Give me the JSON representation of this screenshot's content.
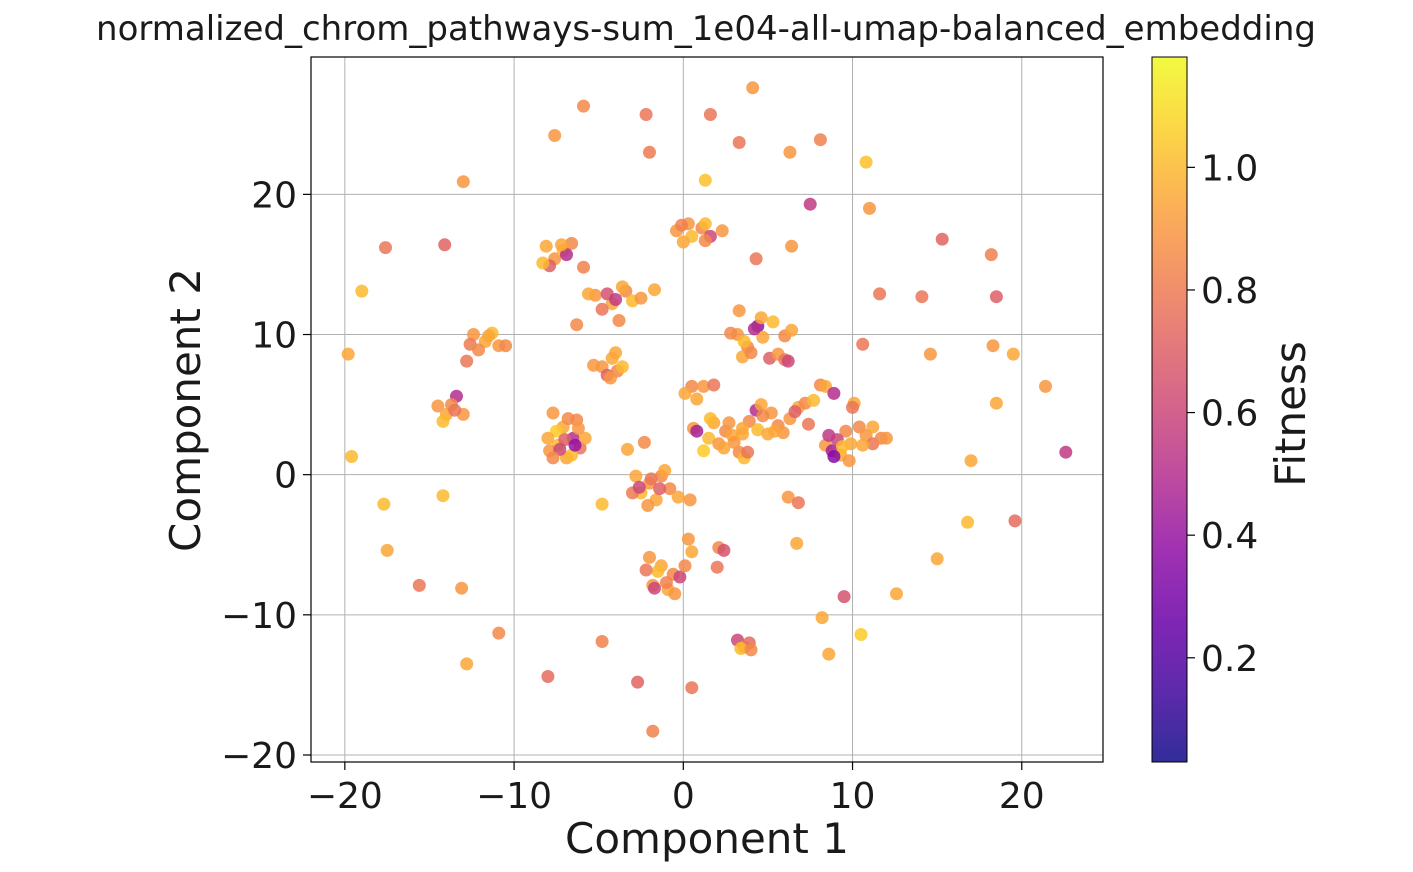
{
  "chart_data": {
    "type": "scatter",
    "title": "normalized_chrom_pathways-sum_1e04-all-umap-balanced_embedding",
    "xlabel": "Component 1",
    "ylabel": "Component 2",
    "xlim": [
      -22,
      24.8
    ],
    "ylim": [
      -20.5,
      29.8
    ],
    "xticks": [
      -20,
      -10,
      0,
      10,
      20
    ],
    "yticks": [
      -20,
      -10,
      0,
      10,
      20
    ],
    "xtick_labels": [
      "−20",
      "−10",
      "0",
      "10",
      "20"
    ],
    "ytick_labels": [
      "−20",
      "−10",
      "0",
      "10",
      "20"
    ],
    "grid": true,
    "colorbar": {
      "label": "Fitness",
      "colormap": "plasma",
      "range": [
        0.03,
        1.18
      ],
      "ticks": [
        0.2,
        0.4,
        0.6,
        0.8,
        1.0
      ],
      "tick_labels": [
        "0.2",
        "0.4",
        "0.6",
        "0.8",
        "1.0"
      ]
    },
    "points": [
      {
        "x": 4.1,
        "y": 27.6,
        "c": 0.9
      },
      {
        "x": -5.9,
        "y": 26.3,
        "c": 0.85
      },
      {
        "x": -2.2,
        "y": 25.7,
        "c": 0.78
      },
      {
        "x": 1.6,
        "y": 25.7,
        "c": 0.78
      },
      {
        "x": -7.6,
        "y": 24.2,
        "c": 0.9
      },
      {
        "x": 3.3,
        "y": 23.7,
        "c": 0.78
      },
      {
        "x": 8.1,
        "y": 23.9,
        "c": 0.82
      },
      {
        "x": -2.0,
        "y": 23.0,
        "c": 0.8
      },
      {
        "x": 6.3,
        "y": 23.0,
        "c": 0.9
      },
      {
        "x": 10.8,
        "y": 22.3,
        "c": 1.02
      },
      {
        "x": -13.0,
        "y": 20.9,
        "c": 0.9
      },
      {
        "x": 1.3,
        "y": 21.0,
        "c": 1.02
      },
      {
        "x": 7.5,
        "y": 19.3,
        "c": 0.55
      },
      {
        "x": 11.0,
        "y": 19.0,
        "c": 0.9
      },
      {
        "x": -17.6,
        "y": 16.2,
        "c": 0.78
      },
      {
        "x": -14.1,
        "y": 16.4,
        "c": 0.72
      },
      {
        "x": 15.3,
        "y": 16.8,
        "c": 0.72
      },
      {
        "x": 18.2,
        "y": 15.7,
        "c": 0.82
      },
      {
        "x": -19.0,
        "y": 13.1,
        "c": 1.0
      },
      {
        "x": 11.6,
        "y": 12.9,
        "c": 0.78
      },
      {
        "x": 14.1,
        "y": 12.7,
        "c": 0.78
      },
      {
        "x": 18.5,
        "y": 12.7,
        "c": 0.7
      },
      {
        "x": -1.7,
        "y": 13.2,
        "c": 0.95
      },
      {
        "x": -5.9,
        "y": 14.8,
        "c": 0.82
      },
      {
        "x": 4.3,
        "y": 15.4,
        "c": 0.78
      },
      {
        "x": 6.4,
        "y": 16.3,
        "c": 0.9
      },
      {
        "x": -19.8,
        "y": 8.6,
        "c": 0.95
      },
      {
        "x": 10.6,
        "y": 9.3,
        "c": 0.78
      },
      {
        "x": 14.6,
        "y": 8.6,
        "c": 0.9
      },
      {
        "x": 18.3,
        "y": 9.2,
        "c": 0.9
      },
      {
        "x": 19.5,
        "y": 8.6,
        "c": 0.95
      },
      {
        "x": 21.4,
        "y": 6.3,
        "c": 0.9
      },
      {
        "x": 18.5,
        "y": 5.1,
        "c": 0.95
      },
      {
        "x": 22.6,
        "y": 1.6,
        "c": 0.55
      },
      {
        "x": 17.0,
        "y": 1.0,
        "c": 0.95
      },
      {
        "x": -19.6,
        "y": 1.3,
        "c": 1.0
      },
      {
        "x": -17.7,
        "y": -2.1,
        "c": 1.0
      },
      {
        "x": -14.2,
        "y": -1.5,
        "c": 1.0
      },
      {
        "x": -17.5,
        "y": -5.4,
        "c": 0.95
      },
      {
        "x": -15.6,
        "y": -7.9,
        "c": 0.78
      },
      {
        "x": -13.1,
        "y": -8.1,
        "c": 0.9
      },
      {
        "x": -10.9,
        "y": -11.3,
        "c": 0.85
      },
      {
        "x": -12.8,
        "y": -13.5,
        "c": 0.95
      },
      {
        "x": -8.0,
        "y": -14.4,
        "c": 0.75
      },
      {
        "x": -4.8,
        "y": -11.9,
        "c": 0.82
      },
      {
        "x": -2.7,
        "y": -14.8,
        "c": 0.72
      },
      {
        "x": 0.5,
        "y": -15.2,
        "c": 0.78
      },
      {
        "x": -1.8,
        "y": -18.3,
        "c": 0.82
      },
      {
        "x": 16.8,
        "y": -3.4,
        "c": 1.0
      },
      {
        "x": 19.6,
        "y": -3.3,
        "c": 0.75
      },
      {
        "x": 15.0,
        "y": -6.0,
        "c": 0.95
      },
      {
        "x": 12.6,
        "y": -8.5,
        "c": 0.95
      },
      {
        "x": 9.5,
        "y": -8.7,
        "c": 0.65
      },
      {
        "x": 8.2,
        "y": -10.2,
        "c": 0.95
      },
      {
        "x": 8.6,
        "y": -12.8,
        "c": 0.95
      },
      {
        "x": 10.5,
        "y": -11.4,
        "c": 1.05
      },
      {
        "x": -4.8,
        "y": -2.1,
        "c": 1.0
      },
      {
        "x": 6.2,
        "y": -1.6,
        "c": 0.9
      },
      {
        "x": 6.8,
        "y": -2.0,
        "c": 0.78
      },
      {
        "x": 6.7,
        "y": -4.9,
        "c": 0.95
      },
      {
        "x": -3.3,
        "y": 1.8,
        "c": 0.95
      },
      {
        "x": -2.3,
        "y": 2.3,
        "c": 0.85
      },
      {
        "x": -8.1,
        "y": 16.3,
        "c": 0.95
      },
      {
        "x": -7.6,
        "y": 15.4,
        "c": 0.9
      },
      {
        "x": -7.1,
        "y": 16.0,
        "c": 1.0
      },
      {
        "x": -6.6,
        "y": 16.5,
        "c": 0.85
      },
      {
        "x": -7.9,
        "y": 14.9,
        "c": 0.7
      },
      {
        "x": -6.9,
        "y": 15.7,
        "c": 0.5
      },
      {
        "x": -7.2,
        "y": 16.4,
        "c": 0.95
      },
      {
        "x": -8.3,
        "y": 15.1,
        "c": 1.0
      },
      {
        "x": -5.2,
        "y": 12.8,
        "c": 0.9
      },
      {
        "x": -4.2,
        "y": 12.2,
        "c": 0.95
      },
      {
        "x": -3.4,
        "y": 13.1,
        "c": 0.85
      },
      {
        "x": -4.8,
        "y": 11.8,
        "c": 0.78
      },
      {
        "x": -3.0,
        "y": 12.4,
        "c": 1.0
      },
      {
        "x": -2.5,
        "y": 12.6,
        "c": 0.9
      },
      {
        "x": -3.8,
        "y": 11.0,
        "c": 0.85
      },
      {
        "x": -4.5,
        "y": 12.9,
        "c": 0.65
      },
      {
        "x": -5.6,
        "y": 12.9,
        "c": 0.95
      },
      {
        "x": -3.6,
        "y": 13.4,
        "c": 0.95
      },
      {
        "x": -4.0,
        "y": 12.5,
        "c": 0.55
      },
      {
        "x": -6.3,
        "y": 10.7,
        "c": 0.85
      },
      {
        "x": -0.4,
        "y": 17.4,
        "c": 0.9
      },
      {
        "x": 0.5,
        "y": 17.0,
        "c": 1.0
      },
      {
        "x": 1.1,
        "y": 17.6,
        "c": 0.85
      },
      {
        "x": 0.0,
        "y": 16.6,
        "c": 0.95
      },
      {
        "x": 1.6,
        "y": 17.0,
        "c": 0.6
      },
      {
        "x": 0.3,
        "y": 17.9,
        "c": 0.9
      },
      {
        "x": 1.3,
        "y": 17.9,
        "c": 1.0
      },
      {
        "x": 2.3,
        "y": 17.4,
        "c": 0.9
      },
      {
        "x": 1.3,
        "y": 16.7,
        "c": 0.85
      },
      {
        "x": -0.1,
        "y": 17.8,
        "c": 0.82
      },
      {
        "x": -12.4,
        "y": 10.0,
        "c": 0.9
      },
      {
        "x": -11.7,
        "y": 9.5,
        "c": 0.95
      },
      {
        "x": -12.6,
        "y": 9.3,
        "c": 0.8
      },
      {
        "x": -11.3,
        "y": 10.1,
        "c": 1.0
      },
      {
        "x": -12.1,
        "y": 8.9,
        "c": 0.85
      },
      {
        "x": -10.9,
        "y": 9.2,
        "c": 0.9
      },
      {
        "x": -10.5,
        "y": 9.2,
        "c": 0.85
      },
      {
        "x": -12.8,
        "y": 8.1,
        "c": 0.78
      },
      {
        "x": -11.5,
        "y": 9.9,
        "c": 0.95
      },
      {
        "x": -4.8,
        "y": 7.7,
        "c": 0.9
      },
      {
        "x": -4.2,
        "y": 8.3,
        "c": 0.95
      },
      {
        "x": -3.9,
        "y": 7.4,
        "c": 0.85
      },
      {
        "x": -4.5,
        "y": 7.1,
        "c": 0.7
      },
      {
        "x": -3.6,
        "y": 7.7,
        "c": 1.0
      },
      {
        "x": -5.3,
        "y": 7.8,
        "c": 0.9
      },
      {
        "x": -4.0,
        "y": 8.7,
        "c": 0.95
      },
      {
        "x": -4.3,
        "y": 6.9,
        "c": 0.9
      },
      {
        "x": -14.5,
        "y": 4.9,
        "c": 0.9
      },
      {
        "x": -14.0,
        "y": 4.3,
        "c": 0.95
      },
      {
        "x": -13.4,
        "y": 5.6,
        "c": 0.5
      },
      {
        "x": -13.7,
        "y": 5.0,
        "c": 0.85
      },
      {
        "x": -14.2,
        "y": 3.8,
        "c": 1.0
      },
      {
        "x": -13.0,
        "y": 4.3,
        "c": 0.9
      },
      {
        "x": -13.5,
        "y": 4.6,
        "c": 0.78
      },
      {
        "x": -7.7,
        "y": 4.4,
        "c": 0.9
      },
      {
        "x": -7.1,
        "y": 3.4,
        "c": 0.95
      },
      {
        "x": -6.5,
        "y": 2.6,
        "c": 0.5
      },
      {
        "x": -7.4,
        "y": 2.1,
        "c": 1.0
      },
      {
        "x": -6.3,
        "y": 3.9,
        "c": 0.85
      },
      {
        "x": -7.9,
        "y": 1.7,
        "c": 0.9
      },
      {
        "x": -6.9,
        "y": 1.2,
        "c": 0.95
      },
      {
        "x": -6.1,
        "y": 1.9,
        "c": 0.78
      },
      {
        "x": -7.5,
        "y": 3.1,
        "c": 1.05
      },
      {
        "x": -6.8,
        "y": 4.0,
        "c": 0.85
      },
      {
        "x": -5.8,
        "y": 2.6,
        "c": 0.95
      },
      {
        "x": -7.0,
        "y": 2.5,
        "c": 0.7
      },
      {
        "x": -8.0,
        "y": 2.6,
        "c": 0.95
      },
      {
        "x": -6.6,
        "y": 1.4,
        "c": 1.0
      },
      {
        "x": -7.3,
        "y": 1.8,
        "c": 0.6
      },
      {
        "x": -6.2,
        "y": 3.3,
        "c": 0.9
      },
      {
        "x": -7.7,
        "y": 1.2,
        "c": 0.85
      },
      {
        "x": -6.4,
        "y": 2.1,
        "c": 0.4
      },
      {
        "x": -2.8,
        "y": -0.1,
        "c": 0.95
      },
      {
        "x": -2.0,
        "y": -0.6,
        "c": 0.9
      },
      {
        "x": -1.3,
        "y": -0.1,
        "c": 0.85
      },
      {
        "x": -2.5,
        "y": -1.3,
        "c": 1.0
      },
      {
        "x": -1.6,
        "y": -1.8,
        "c": 0.95
      },
      {
        "x": -0.8,
        "y": -1.0,
        "c": 0.85
      },
      {
        "x": -2.1,
        "y": -2.2,
        "c": 0.9
      },
      {
        "x": -0.3,
        "y": -1.6,
        "c": 0.95
      },
      {
        "x": -3.0,
        "y": -1.3,
        "c": 0.8
      },
      {
        "x": -1.1,
        "y": 0.3,
        "c": 0.95
      },
      {
        "x": 0.4,
        "y": -1.8,
        "c": 0.9
      },
      {
        "x": -1.9,
        "y": -0.3,
        "c": 0.78
      },
      {
        "x": -2.6,
        "y": -0.9,
        "c": 0.6
      },
      {
        "x": -1.4,
        "y": -1.0,
        "c": 0.7
      },
      {
        "x": -2.0,
        "y": -5.9,
        "c": 0.9
      },
      {
        "x": -1.3,
        "y": -6.5,
        "c": 0.95
      },
      {
        "x": -0.6,
        "y": -7.1,
        "c": 0.85
      },
      {
        "x": -1.8,
        "y": -7.9,
        "c": 0.9
      },
      {
        "x": -0.9,
        "y": -8.2,
        "c": 0.95
      },
      {
        "x": -0.2,
        "y": -7.3,
        "c": 0.6
      },
      {
        "x": -1.5,
        "y": -6.9,
        "c": 1.0
      },
      {
        "x": 0.1,
        "y": -6.5,
        "c": 0.85
      },
      {
        "x": -2.2,
        "y": -6.8,
        "c": 0.78
      },
      {
        "x": -0.5,
        "y": -8.5,
        "c": 0.9
      },
      {
        "x": -1.0,
        "y": -7.7,
        "c": 0.82
      },
      {
        "x": -1.7,
        "y": -8.1,
        "c": 0.6
      },
      {
        "x": 0.3,
        "y": -4.6,
        "c": 0.9
      },
      {
        "x": 0.5,
        "y": -5.5,
        "c": 0.95
      },
      {
        "x": 2.1,
        "y": -5.2,
        "c": 0.85
      },
      {
        "x": 2.4,
        "y": -5.4,
        "c": 0.65
      },
      {
        "x": 2.0,
        "y": -6.6,
        "c": 0.78
      },
      {
        "x": 3.2,
        "y": -11.8,
        "c": 0.6
      },
      {
        "x": 3.6,
        "y": -12.3,
        "c": 0.9
      },
      {
        "x": 3.9,
        "y": -12.0,
        "c": 0.75
      },
      {
        "x": 3.4,
        "y": -12.4,
        "c": 1.0
      },
      {
        "x": 4.0,
        "y": -12.5,
        "c": 0.85
      },
      {
        "x": 0.5,
        "y": 6.3,
        "c": 0.85
      },
      {
        "x": 1.2,
        "y": 6.3,
        "c": 0.9
      },
      {
        "x": 0.1,
        "y": 5.8,
        "c": 0.95
      },
      {
        "x": 0.8,
        "y": 5.4,
        "c": 0.95
      },
      {
        "x": 1.8,
        "y": 6.4,
        "c": 0.78
      },
      {
        "x": 0.6,
        "y": 3.3,
        "c": 0.9
      },
      {
        "x": 0.8,
        "y": 3.1,
        "c": 0.45
      },
      {
        "x": 1.8,
        "y": 3.7,
        "c": 0.95
      },
      {
        "x": 2.5,
        "y": 3.1,
        "c": 0.85
      },
      {
        "x": 1.5,
        "y": 2.6,
        "c": 1.0
      },
      {
        "x": 2.1,
        "y": 2.2,
        "c": 0.9
      },
      {
        "x": 1.2,
        "y": 1.7,
        "c": 1.05
      },
      {
        "x": 2.9,
        "y": 2.8,
        "c": 0.95
      },
      {
        "x": 3.3,
        "y": 1.6,
        "c": 0.85
      },
      {
        "x": 3.6,
        "y": 1.2,
        "c": 1.0
      },
      {
        "x": 3.0,
        "y": 2.3,
        "c": 0.9
      },
      {
        "x": 2.4,
        "y": 1.9,
        "c": 0.95
      },
      {
        "x": 3.8,
        "y": 1.6,
        "c": 0.78
      },
      {
        "x": 1.6,
        "y": 4.0,
        "c": 1.0
      },
      {
        "x": 2.7,
        "y": 3.7,
        "c": 0.9
      },
      {
        "x": 3.5,
        "y": 2.9,
        "c": 0.95
      },
      {
        "x": 3.2,
        "y": 10.0,
        "c": 0.9
      },
      {
        "x": 3.8,
        "y": 9.1,
        "c": 0.85
      },
      {
        "x": 4.4,
        "y": 10.6,
        "c": 0.4
      },
      {
        "x": 4.6,
        "y": 11.2,
        "c": 0.95
      },
      {
        "x": 5.3,
        "y": 10.9,
        "c": 1.0
      },
      {
        "x": 3.5,
        "y": 8.4,
        "c": 0.95
      },
      {
        "x": 4.0,
        "y": 8.7,
        "c": 0.85
      },
      {
        "x": 5.1,
        "y": 8.3,
        "c": 0.7
      },
      {
        "x": 5.6,
        "y": 8.6,
        "c": 0.9
      },
      {
        "x": 4.7,
        "y": 9.8,
        "c": 0.95
      },
      {
        "x": 6.0,
        "y": 9.9,
        "c": 0.85
      },
      {
        "x": 6.4,
        "y": 10.3,
        "c": 0.95
      },
      {
        "x": 6.0,
        "y": 8.2,
        "c": 0.78
      },
      {
        "x": 6.2,
        "y": 8.1,
        "c": 0.6
      },
      {
        "x": 2.8,
        "y": 10.1,
        "c": 0.85
      },
      {
        "x": 3.3,
        "y": 11.7,
        "c": 0.9
      },
      {
        "x": 4.2,
        "y": 10.4,
        "c": 0.5
      },
      {
        "x": 3.6,
        "y": 9.5,
        "c": 1.0
      },
      {
        "x": 4.3,
        "y": 4.6,
        "c": 0.5
      },
      {
        "x": 4.6,
        "y": 5.0,
        "c": 0.95
      },
      {
        "x": 5.2,
        "y": 4.4,
        "c": 0.9
      },
      {
        "x": 3.9,
        "y": 3.8,
        "c": 0.85
      },
      {
        "x": 4.4,
        "y": 3.2,
        "c": 1.0
      },
      {
        "x": 5.0,
        "y": 2.9,
        "c": 0.95
      },
      {
        "x": 5.6,
        "y": 3.5,
        "c": 0.85
      },
      {
        "x": 6.3,
        "y": 4.0,
        "c": 0.9
      },
      {
        "x": 6.8,
        "y": 4.8,
        "c": 0.95
      },
      {
        "x": 7.2,
        "y": 5.1,
        "c": 0.85
      },
      {
        "x": 7.4,
        "y": 3.6,
        "c": 0.78
      },
      {
        "x": 7.7,
        "y": 5.3,
        "c": 1.0
      },
      {
        "x": 8.1,
        "y": 6.4,
        "c": 0.85
      },
      {
        "x": 8.4,
        "y": 6.3,
        "c": 0.95
      },
      {
        "x": 8.9,
        "y": 5.8,
        "c": 0.5
      },
      {
        "x": 5.9,
        "y": 3.0,
        "c": 0.9
      },
      {
        "x": 6.6,
        "y": 4.5,
        "c": 0.7
      },
      {
        "x": 4.7,
        "y": 4.2,
        "c": 0.85
      },
      {
        "x": 3.5,
        "y": 3.3,
        "c": 0.95
      },
      {
        "x": 5.4,
        "y": 3.1,
        "c": 0.95
      },
      {
        "x": 8.4,
        "y": 2.1,
        "c": 0.9
      },
      {
        "x": 8.8,
        "y": 1.7,
        "c": 0.45
      },
      {
        "x": 9.3,
        "y": 1.4,
        "c": 0.95
      },
      {
        "x": 9.8,
        "y": 1.0,
        "c": 0.9
      },
      {
        "x": 9.6,
        "y": 3.1,
        "c": 0.85
      },
      {
        "x": 10.1,
        "y": 5.1,
        "c": 0.95
      },
      {
        "x": 10.4,
        "y": 3.4,
        "c": 0.85
      },
      {
        "x": 10.8,
        "y": 2.8,
        "c": 0.9
      },
      {
        "x": 11.2,
        "y": 2.2,
        "c": 0.78
      },
      {
        "x": 11.7,
        "y": 2.6,
        "c": 0.85
      },
      {
        "x": 11.2,
        "y": 3.4,
        "c": 0.95
      },
      {
        "x": 10.0,
        "y": 4.8,
        "c": 0.78
      },
      {
        "x": 9.1,
        "y": 2.5,
        "c": 0.6
      },
      {
        "x": 9.9,
        "y": 2.2,
        "c": 0.95
      },
      {
        "x": 12.0,
        "y": 2.6,
        "c": 0.9
      },
      {
        "x": 8.9,
        "y": 1.3,
        "c": 0.35
      },
      {
        "x": 10.6,
        "y": 2.1,
        "c": 0.95
      },
      {
        "x": 9.4,
        "y": 2.0,
        "c": 1.0
      },
      {
        "x": 8.6,
        "y": 2.8,
        "c": 0.55
      }
    ]
  }
}
